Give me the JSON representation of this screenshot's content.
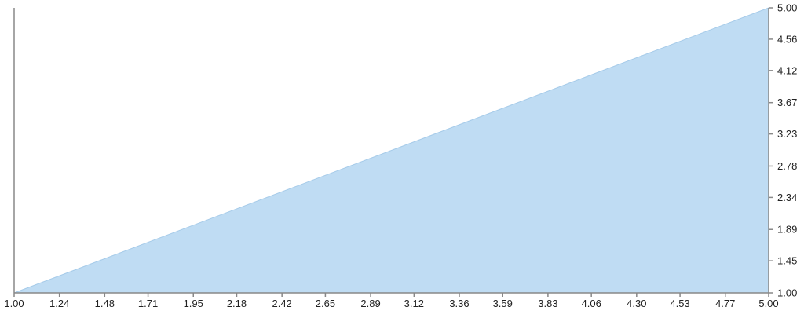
{
  "chart_data": {
    "type": "area",
    "x": [
      1.0,
      5.0
    ],
    "y": [
      1.0,
      5.0
    ],
    "xlim": [
      1.0,
      5.0
    ],
    "ylim": [
      1.0,
      5.0
    ],
    "x_ticks": [
      "1.00",
      "1.24",
      "1.48",
      "1.71",
      "1.95",
      "2.18",
      "2.42",
      "2.65",
      "2.89",
      "3.12",
      "3.36",
      "3.59",
      "3.83",
      "4.06",
      "4.30",
      "4.53",
      "4.77",
      "5.00"
    ],
    "y_ticks": [
      "1.00",
      "1.45",
      "1.89",
      "2.34",
      "2.78",
      "3.23",
      "3.67",
      "4.12",
      "4.56",
      "5.00"
    ],
    "y_axis_side": "right",
    "grid": false,
    "fill_color": "#bfdcf3",
    "line_color": "#a6cbe9",
    "axis_color": "#888888"
  }
}
